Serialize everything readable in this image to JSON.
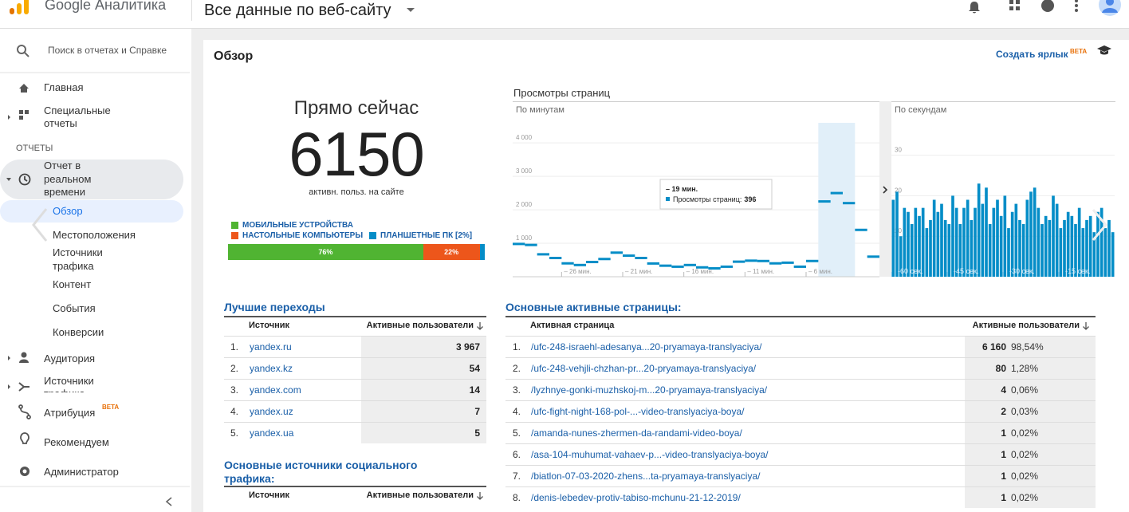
{
  "header": {
    "product": "Google Аналитика",
    "property": "Все данные по веб-сайту"
  },
  "sidebar": {
    "search_placeholder": "Поиск в отчетах и Справке",
    "home": "Главная",
    "custom_reports": "Специальные отчеты",
    "section_label": "ОТЧЕТЫ",
    "realtime": "Отчет в реальном времени",
    "realtime_items": [
      "Обзор",
      "Местоположения",
      "Источники трафика",
      "Контент",
      "События",
      "Конверсии"
    ],
    "audience": "Аудитория",
    "acquisition": "Источники трафика",
    "attribution": "Атрибуция",
    "attribution_badge": "BETA",
    "discover": "Рекомендуем",
    "admin": "Администратор"
  },
  "content": {
    "title": "Обзор",
    "create_shortcut": "Создать ярлык",
    "shortcut_badge": "BETA"
  },
  "right_now": {
    "title": "Прямо сейчас",
    "count": 6150,
    "label": "активн. польз. на сайте",
    "devices": [
      {
        "name": "МОБИЛЬНЫЕ УСТРОЙСТВА",
        "color": "#50b432",
        "value": 76,
        "value_label": "76%"
      },
      {
        "name": "НАСТОЛЬНЫЕ КОМПЬЮТЕРЫ",
        "color": "#ed561b",
        "value": 22,
        "value_label": "22%"
      },
      {
        "name": "ПЛАНШЕТНЫЕ ПК [2%]",
        "color": "#058dc7",
        "value": 2
      }
    ]
  },
  "pageviews": {
    "title": "Просмотры страниц",
    "per_minute": {
      "type": "bar",
      "label": "По минутам",
      "color": "#058dc7",
      "values": [
        980,
        950,
        670,
        560,
        400,
        350,
        440,
        530,
        720,
        630,
        560,
        396,
        330,
        300,
        350,
        280,
        250,
        300,
        450,
        480,
        470,
        400,
        420,
        300,
        470,
        2250,
        2500,
        2200,
        1400,
        600
      ],
      "ylim": [
        0,
        4600
      ],
      "yticks": [
        {
          "value": 1000,
          "label": "1 000"
        },
        {
          "value": 2000,
          "label": "2 000"
        },
        {
          "value": 3000,
          "label": "3 000"
        },
        {
          "value": 4000,
          "label": "4 000"
        }
      ],
      "xlim": [
        -30,
        0
      ],
      "xticks": [
        {
          "value": -26,
          "label": "– 26 мин."
        },
        {
          "value": -21,
          "label": "– 21 мин."
        },
        {
          "value": -16,
          "label": "– 16 мин."
        },
        {
          "value": -11,
          "label": "– 11 мин."
        },
        {
          "value": -6,
          "label": "– 6 мин."
        }
      ],
      "tooltip": {
        "title": "– 19 мин.",
        "series_label": "Просмотры страниц:",
        "value": 396
      }
    },
    "per_second": {
      "type": "bar",
      "label": "По секундам",
      "color": "#058dc7",
      "values": [
        19,
        21,
        10,
        17,
        16,
        13,
        17,
        15,
        17,
        12,
        14,
        19,
        16,
        18,
        14,
        13,
        20,
        17,
        13,
        17,
        19,
        14,
        17,
        23,
        18,
        22,
        13,
        17,
        19,
        15,
        20,
        12,
        16,
        18,
        14,
        13,
        19,
        21,
        22,
        17,
        13,
        15,
        14,
        20,
        18,
        12,
        14,
        16,
        15,
        13,
        17,
        12,
        14,
        15,
        11,
        16,
        17,
        12,
        14,
        11
      ],
      "ylim": [
        0,
        38
      ],
      "yticks": [
        10,
        20,
        30
      ],
      "xlim": [
        -60,
        0
      ],
      "xticks": [
        {
          "value": -60,
          "label": "-60 сек."
        },
        {
          "value": -45,
          "label": "-45 сек."
        },
        {
          "value": -30,
          "label": "-30 сек."
        },
        {
          "value": -15,
          "label": "-15 сек."
        }
      ]
    }
  },
  "top_referrals": {
    "title": "Лучшие переходы",
    "columns": [
      "Источник",
      "Активные пользователи"
    ],
    "rows": [
      [
        "1.",
        "yandex.ru",
        "3 967"
      ],
      [
        "2.",
        "yandex.kz",
        "54"
      ],
      [
        "3.",
        "yandex.com",
        "14"
      ],
      [
        "4.",
        "yandex.uz",
        "7"
      ],
      [
        "5.",
        "yandex.ua",
        "5"
      ]
    ]
  },
  "top_pages": {
    "title": "Основные активные страницы:",
    "columns": [
      "Активная страница",
      "Активные пользователи"
    ],
    "rows": [
      [
        "1.",
        "/ufc-248-israehl-adesanya...20-pryamaya-translyaciya/",
        "6 160",
        "98,54%"
      ],
      [
        "2.",
        "/ufc-248-vehjli-chzhan-pr...20-pryamaya-translyaciya/",
        "80",
        "1,28%"
      ],
      [
        "3.",
        "/lyzhnye-gonki-muzhskoj-m...20-pryamaya-translyaciya/",
        "4",
        "0,06%"
      ],
      [
        "4.",
        "/ufc-fight-night-168-pol-...-video-translyaciya-boya/",
        "2",
        "0,03%"
      ],
      [
        "5.",
        "/amanda-nunes-zhermen-da-randami-video-boya/",
        "1",
        "0,02%"
      ],
      [
        "6.",
        "/asa-104-muhumat-vahaev-p...-video-translyaciya-boya/",
        "1",
        "0,02%"
      ],
      [
        "7.",
        "/biatlon-07-03-2020-zhens...ta-pryamaya-translyaciya/",
        "1",
        "0,02%"
      ],
      [
        "8.",
        "/denis-lebedev-protiv-tabiso-mchunu-21-12-2019/",
        "1",
        "0,02%"
      ]
    ]
  },
  "top_social": {
    "title": "Основные источники социального трафика:",
    "columns": [
      "Источник",
      "Активные пользователи"
    ]
  }
}
